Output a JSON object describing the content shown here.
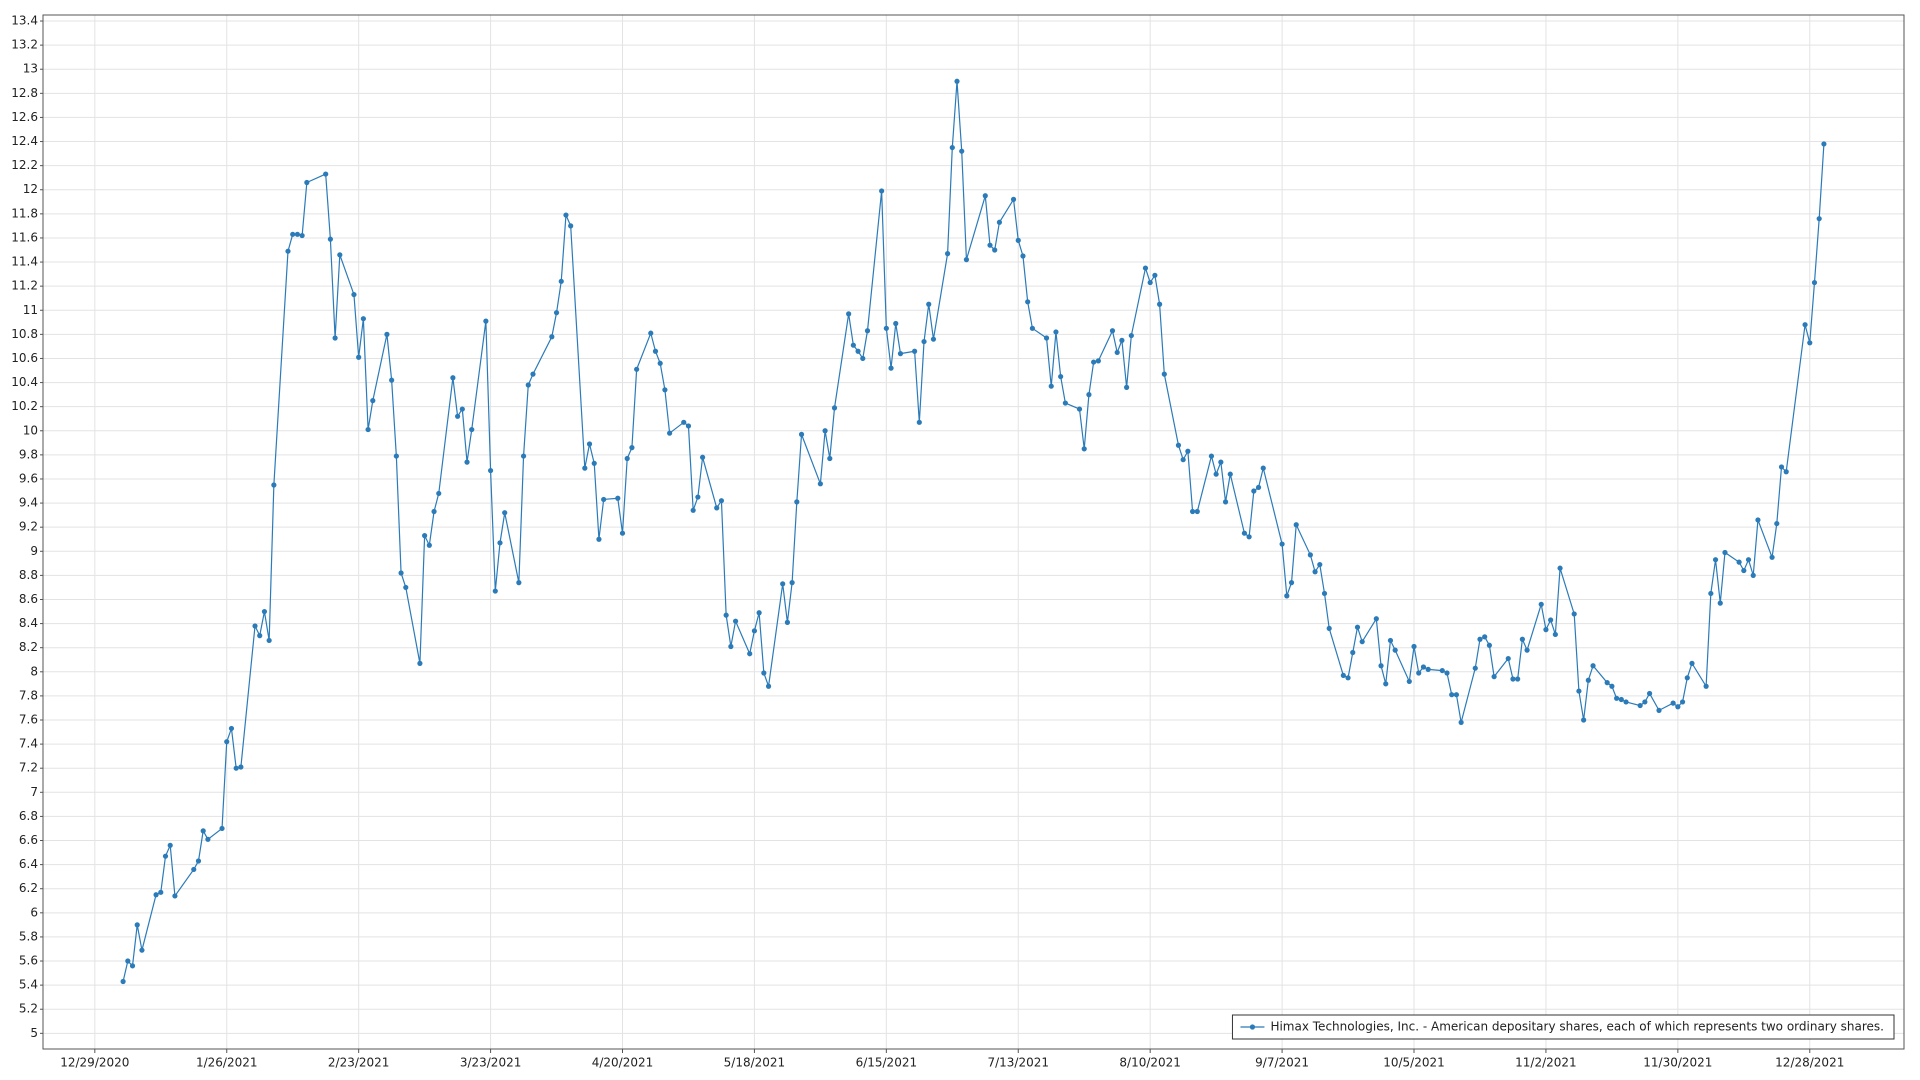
{
  "chart_data": {
    "type": "line",
    "x": [
      "1/4/2021",
      "1/5/2021",
      "1/6/2021",
      "1/7/2021",
      "1/8/2021",
      "1/11/2021",
      "1/12/2021",
      "1/13/2021",
      "1/14/2021",
      "1/15/2021",
      "1/19/2021",
      "1/20/2021",
      "1/21/2021",
      "1/22/2021",
      "1/25/2021",
      "1/26/2021",
      "1/27/2021",
      "1/28/2021",
      "1/29/2021",
      "2/1/2021",
      "2/2/2021",
      "2/3/2021",
      "2/4/2021",
      "2/5/2021",
      "2/8/2021",
      "2/9/2021",
      "2/10/2021",
      "2/11/2021",
      "2/12/2021",
      "2/16/2021",
      "2/17/2021",
      "2/18/2021",
      "2/19/2021",
      "2/22/2021",
      "2/23/2021",
      "2/24/2021",
      "2/25/2021",
      "2/26/2021",
      "3/1/2021",
      "3/2/2021",
      "3/3/2021",
      "3/4/2021",
      "3/5/2021",
      "3/8/2021",
      "3/9/2021",
      "3/10/2021",
      "3/11/2021",
      "3/12/2021",
      "3/15/2021",
      "3/16/2021",
      "3/17/2021",
      "3/18/2021",
      "3/19/2021",
      "3/22/2021",
      "3/23/2021",
      "3/24/2021",
      "3/25/2021",
      "3/26/2021",
      "3/29/2021",
      "3/30/2021",
      "3/31/2021",
      "4/1/2021",
      "4/5/2021",
      "4/6/2021",
      "4/7/2021",
      "4/8/2021",
      "4/9/2021",
      "4/12/2021",
      "4/13/2021",
      "4/14/2021",
      "4/15/2021",
      "4/16/2021",
      "4/19/2021",
      "4/20/2021",
      "4/21/2021",
      "4/22/2021",
      "4/23/2021",
      "4/26/2021",
      "4/27/2021",
      "4/28/2021",
      "4/29/2021",
      "4/30/2021",
      "5/3/2021",
      "5/4/2021",
      "5/5/2021",
      "5/6/2021",
      "5/7/2021",
      "5/10/2021",
      "5/11/2021",
      "5/12/2021",
      "5/13/2021",
      "5/14/2021",
      "5/17/2021",
      "5/18/2021",
      "5/19/2021",
      "5/20/2021",
      "5/21/2021",
      "5/24/2021",
      "5/25/2021",
      "5/26/2021",
      "5/27/2021",
      "5/28/2021",
      "6/1/2021",
      "6/2/2021",
      "6/3/2021",
      "6/4/2021",
      "6/7/2021",
      "6/8/2021",
      "6/9/2021",
      "6/10/2021",
      "6/11/2021",
      "6/14/2021",
      "6/15/2021",
      "6/16/2021",
      "6/17/2021",
      "6/18/2021",
      "6/21/2021",
      "6/22/2021",
      "6/23/2021",
      "6/24/2021",
      "6/25/2021",
      "6/28/2021",
      "6/29/2021",
      "6/30/2021",
      "7/1/2021",
      "7/2/2021",
      "7/6/2021",
      "7/7/2021",
      "7/8/2021",
      "7/9/2021",
      "7/12/2021",
      "7/13/2021",
      "7/14/2021",
      "7/15/2021",
      "7/16/2021",
      "7/19/2021",
      "7/20/2021",
      "7/21/2021",
      "7/22/2021",
      "7/23/2021",
      "7/26/2021",
      "7/27/2021",
      "7/28/2021",
      "7/29/2021",
      "7/30/2021",
      "8/2/2021",
      "8/3/2021",
      "8/4/2021",
      "8/5/2021",
      "8/6/2021",
      "8/9/2021",
      "8/10/2021",
      "8/11/2021",
      "8/12/2021",
      "8/13/2021",
      "8/16/2021",
      "8/17/2021",
      "8/18/2021",
      "8/19/2021",
      "8/20/2021",
      "8/23/2021",
      "8/24/2021",
      "8/25/2021",
      "8/26/2021",
      "8/27/2021",
      "8/30/2021",
      "8/31/2021",
      "9/1/2021",
      "9/2/2021",
      "9/3/2021",
      "9/7/2021",
      "9/8/2021",
      "9/9/2021",
      "9/10/2021",
      "9/13/2021",
      "9/14/2021",
      "9/15/2021",
      "9/16/2021",
      "9/17/2021",
      "9/20/2021",
      "9/21/2021",
      "9/22/2021",
      "9/23/2021",
      "9/24/2021",
      "9/27/2021",
      "9/28/2021",
      "9/29/2021",
      "9/30/2021",
      "10/1/2021",
      "10/4/2021",
      "10/5/2021",
      "10/6/2021",
      "10/7/2021",
      "10/8/2021",
      "10/11/2021",
      "10/12/2021",
      "10/13/2021",
      "10/14/2021",
      "10/15/2021",
      "10/18/2021",
      "10/19/2021",
      "10/20/2021",
      "10/21/2021",
      "10/22/2021",
      "10/25/2021",
      "10/26/2021",
      "10/27/2021",
      "10/28/2021",
      "10/29/2021",
      "11/1/2021",
      "11/2/2021",
      "11/3/2021",
      "11/4/2021",
      "11/5/2021",
      "11/8/2021",
      "11/9/2021",
      "11/10/2021",
      "11/11/2021",
      "11/12/2021",
      "11/15/2021",
      "11/16/2021",
      "11/17/2021",
      "11/18/2021",
      "11/19/2021",
      "11/22/2021",
      "11/23/2021",
      "11/24/2021",
      "11/26/2021",
      "11/29/2021",
      "11/30/2021",
      "12/1/2021",
      "12/2/2021",
      "12/3/2021",
      "12/6/2021",
      "12/7/2021",
      "12/8/2021",
      "12/9/2021",
      "12/10/2021",
      "12/13/2021",
      "12/14/2021",
      "12/15/2021",
      "12/16/2021",
      "12/17/2021",
      "12/20/2021",
      "12/21/2021",
      "12/22/2021",
      "12/23/2021",
      "12/27/2021",
      "12/28/2021",
      "12/29/2021",
      "12/30/2021",
      "12/31/2021"
    ],
    "series": [
      {
        "name": "Himax Technologies, Inc. - American depositary shares, each of which represents two ordinary shares.",
        "color": "#2b7bb9",
        "values": [
          5.43,
          5.6,
          5.56,
          5.9,
          5.69,
          6.15,
          6.17,
          6.47,
          6.56,
          6.14,
          6.36,
          6.43,
          6.68,
          6.61,
          6.7,
          7.42,
          7.53,
          7.2,
          7.21,
          8.38,
          8.3,
          8.5,
          8.26,
          9.55,
          11.49,
          11.63,
          11.63,
          11.62,
          12.06,
          12.13,
          11.59,
          10.77,
          11.46,
          11.13,
          10.61,
          10.93,
          10.01,
          10.25,
          10.8,
          10.42,
          9.79,
          8.82,
          8.7,
          8.07,
          9.13,
          9.05,
          9.33,
          9.48,
          10.44,
          10.12,
          10.18,
          9.74,
          10.01,
          10.91,
          9.67,
          8.67,
          9.07,
          9.32,
          8.74,
          9.79,
          10.38,
          10.47,
          10.78,
          10.98,
          11.24,
          11.79,
          11.7,
          9.69,
          9.89,
          9.73,
          9.1,
          9.43,
          9.44,
          9.15,
          9.77,
          9.86,
          10.51,
          10.81,
          10.66,
          10.56,
          10.34,
          9.98,
          10.07,
          10.04,
          9.34,
          9.45,
          9.78,
          9.36,
          9.42,
          8.47,
          8.21,
          8.42,
          8.15,
          8.34,
          8.49,
          7.99,
          7.88,
          8.73,
          8.41,
          8.74,
          9.41,
          9.97,
          9.56,
          10.0,
          9.77,
          10.19,
          10.97,
          10.71,
          10.66,
          10.6,
          10.83,
          11.99,
          10.85,
          10.52,
          10.89,
          10.64,
          10.66,
          10.07,
          10.74,
          11.05,
          10.76,
          11.47,
          12.35,
          12.9,
          12.32,
          11.42,
          11.95,
          11.54,
          11.5,
          11.73,
          11.92,
          11.58,
          11.45,
          11.07,
          10.85,
          10.77,
          10.37,
          10.82,
          10.45,
          10.23,
          10.18,
          9.85,
          10.3,
          10.57,
          10.58,
          10.83,
          10.65,
          10.75,
          10.36,
          10.79,
          11.35,
          11.23,
          11.29,
          11.05,
          10.47,
          9.88,
          9.76,
          9.83,
          9.33,
          9.33,
          9.79,
          9.64,
          9.74,
          9.41,
          9.64,
          9.15,
          9.12,
          9.5,
          9.53,
          9.69,
          9.06,
          8.63,
          8.74,
          9.22,
          8.97,
          8.83,
          8.89,
          8.65,
          8.36,
          7.97,
          7.95,
          8.16,
          8.37,
          8.25,
          8.44,
          8.05,
          7.9,
          8.26,
          8.18,
          7.92,
          8.21,
          7.99,
          8.04,
          8.02,
          8.01,
          7.99,
          7.81,
          7.81,
          7.58,
          8.03,
          8.27,
          8.29,
          8.22,
          7.96,
          8.11,
          7.94,
          7.94,
          8.27,
          8.18,
          8.56,
          8.35,
          8.43,
          8.31,
          8.86,
          8.48,
          7.84,
          7.6,
          7.93,
          8.05,
          7.91,
          7.88,
          7.78,
          7.77,
          7.75,
          7.72,
          7.75,
          7.82,
          7.68,
          7.74,
          7.71,
          7.75,
          7.95,
          8.07,
          7.88,
          8.65,
          8.93,
          8.57,
          8.99,
          8.91,
          8.84,
          8.93,
          8.8,
          9.26,
          8.95,
          9.23,
          9.7,
          9.66,
          10.88,
          10.73,
          11.23,
          11.76,
          12.38
        ]
      }
    ],
    "xlim": [
      "12/18/2020",
      "1/17/2022"
    ],
    "xticks": [
      "12/29/2020",
      "1/26/2021",
      "2/23/2021",
      "3/23/2021",
      "4/20/2021",
      "5/18/2021",
      "6/15/2021",
      "7/13/2021",
      "8/10/2021",
      "9/7/2021",
      "10/5/2021",
      "11/2/2021",
      "11/30/2021",
      "12/28/2021"
    ],
    "ylim": [
      4.87,
      13.45
    ],
    "yticks": [
      5,
      5.2,
      5.4,
      5.6,
      5.8,
      6,
      6.2,
      6.4,
      6.6,
      6.8,
      7,
      7.2,
      7.4,
      7.6,
      7.8,
      8,
      8.2,
      8.4,
      8.6,
      8.8,
      9,
      9.2,
      9.4,
      9.6,
      9.8,
      10,
      10.2,
      10.4,
      10.6,
      10.8,
      11,
      11.2,
      11.4,
      11.6,
      11.8,
      12,
      12.2,
      12.4,
      12.6,
      12.8,
      13,
      13.2,
      13.4
    ],
    "grid": true,
    "legend": "bottom-right"
  }
}
